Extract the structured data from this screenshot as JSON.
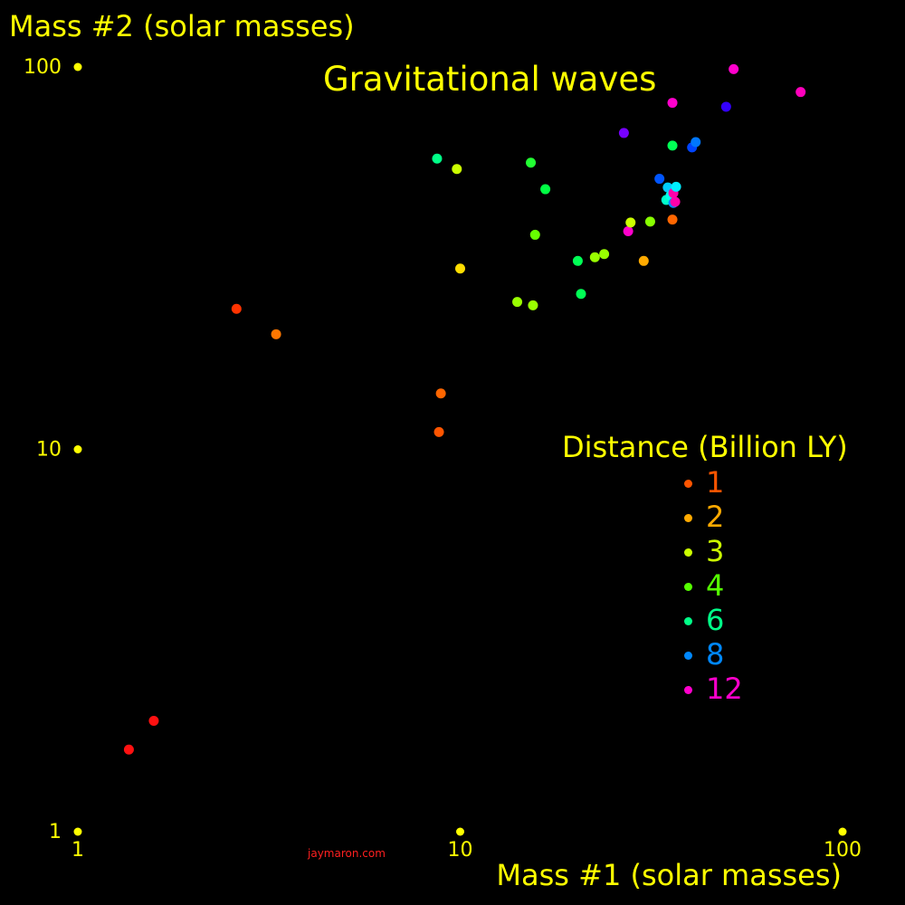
{
  "chart_data": {
    "type": "scatter",
    "title": "Gravitational waves",
    "xlabel": "Mass #1 (solar masses)",
    "ylabel": "Mass #2 (solar masses)",
    "xscale": "log",
    "yscale": "log",
    "xlim": [
      1,
      100
    ],
    "ylim": [
      1,
      100
    ],
    "x_ticks": [
      "1",
      "10",
      "100"
    ],
    "y_ticks": [
      "1",
      "10",
      "100"
    ],
    "grid": false,
    "legend": {
      "title": "Distance (Billion LY)",
      "placement": "center-right",
      "entries": [
        {
          "label": "1",
          "color": "#ff5500"
        },
        {
          "label": "2",
          "color": "#ffaa00"
        },
        {
          "label": "3",
          "color": "#ccff00"
        },
        {
          "label": "4",
          "color": "#55ff00"
        },
        {
          "label": "6",
          "color": "#00ff88"
        },
        {
          "label": "8",
          "color": "#0088ff"
        },
        {
          "label": "12",
          "color": "#ff00cc"
        }
      ]
    },
    "points": [
      {
        "x": 1.36,
        "y": 1.64,
        "color": "#ff1111"
      },
      {
        "x": 1.58,
        "y": 1.95,
        "color": "#ff1111"
      },
      {
        "x": 2.6,
        "y": 23.3,
        "color": "#ff3300"
      },
      {
        "x": 3.3,
        "y": 20.0,
        "color": "#ff7700"
      },
      {
        "x": 8.9,
        "y": 14.0,
        "color": "#ff6600"
      },
      {
        "x": 8.8,
        "y": 11.1,
        "color": "#ff5500"
      },
      {
        "x": 8.7,
        "y": 57.6,
        "color": "#00ff88"
      },
      {
        "x": 9.8,
        "y": 54.1,
        "color": "#ccff00"
      },
      {
        "x": 10.0,
        "y": 29.7,
        "color": "#ffdd00"
      },
      {
        "x": 14.1,
        "y": 24.3,
        "color": "#99ff00"
      },
      {
        "x": 15.3,
        "y": 56.2,
        "color": "#22ff33"
      },
      {
        "x": 15.5,
        "y": 23.8,
        "color": "#99ff00"
      },
      {
        "x": 15.7,
        "y": 36.4,
        "color": "#66ff00"
      },
      {
        "x": 16.7,
        "y": 47.9,
        "color": "#00ff44"
      },
      {
        "x": 20.3,
        "y": 31.1,
        "color": "#00ff55"
      },
      {
        "x": 20.7,
        "y": 25.5,
        "color": "#00ff55"
      },
      {
        "x": 22.5,
        "y": 31.8,
        "color": "#99ff00"
      },
      {
        "x": 23.8,
        "y": 32.4,
        "color": "#99ff00"
      },
      {
        "x": 26.8,
        "y": 67.2,
        "color": "#7700ff"
      },
      {
        "x": 27.5,
        "y": 37.2,
        "color": "#ff00cc"
      },
      {
        "x": 27.9,
        "y": 39.2,
        "color": "#ccff00"
      },
      {
        "x": 30.2,
        "y": 31.1,
        "color": "#ffaa00"
      },
      {
        "x": 31.4,
        "y": 39.4,
        "color": "#88ff00"
      },
      {
        "x": 33.2,
        "y": 51.0,
        "color": "#0055ff"
      },
      {
        "x": 34.6,
        "y": 44.9,
        "color": "#00ffcc"
      },
      {
        "x": 34.9,
        "y": 48.4,
        "color": "#00ccff"
      },
      {
        "x": 35.5,
        "y": 46.1,
        "color": "#00ffee"
      },
      {
        "x": 35.9,
        "y": 39.9,
        "color": "#ff6600"
      },
      {
        "x": 35.9,
        "y": 62.3,
        "color": "#00ff55"
      },
      {
        "x": 35.9,
        "y": 80.6,
        "color": "#ff00cc"
      },
      {
        "x": 36.1,
        "y": 44.1,
        "color": "#0088ff"
      },
      {
        "x": 36.1,
        "y": 46.8,
        "color": "#ff00aa"
      },
      {
        "x": 36.5,
        "y": 44.4,
        "color": "#ff00aa"
      },
      {
        "x": 36.7,
        "y": 48.6,
        "color": "#00eeff"
      },
      {
        "x": 40.4,
        "y": 61.6,
        "color": "#0044ff"
      },
      {
        "x": 41.3,
        "y": 63.6,
        "color": "#0077ff"
      },
      {
        "x": 49.6,
        "y": 78.7,
        "color": "#3300ff"
      },
      {
        "x": 51.9,
        "y": 98.7,
        "color": "#ff00cc"
      },
      {
        "x": 77.7,
        "y": 86.0,
        "color": "#ff00bb"
      }
    ]
  },
  "credit": "jaymaron.com"
}
